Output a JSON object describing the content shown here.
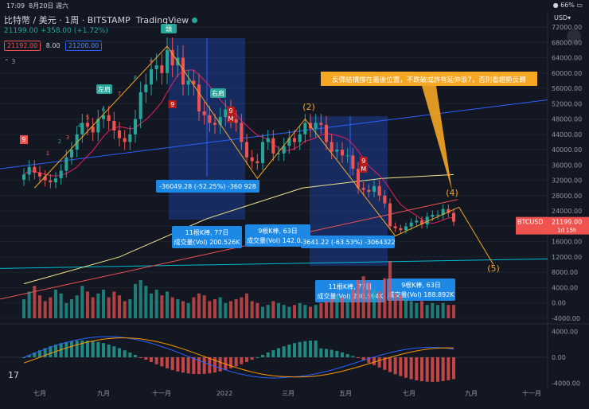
{
  "status_bar": {
    "time": "17:09",
    "date": "8月20日 週六",
    "battery": "66%"
  },
  "header": {
    "symbol": "比特幣 / 美元",
    "interval": "1周",
    "exchange": "BITSTAMP",
    "platform": "TradingView",
    "last_price": "21199.00",
    "change": "+358.00 (+1.72%)",
    "bid": "21192.00",
    "spread": "8.00",
    "ask": "21200.00",
    "indicator_count": "3",
    "currency": "USD"
  },
  "colors": {
    "bg": "#131722",
    "up": "#26a69a",
    "down": "#ef5350",
    "box": "#2962ff",
    "annotation": "#f5a623",
    "callout_bg": "#1e88e5"
  },
  "chart_data": {
    "type": "candlestick",
    "price_axis": {
      "ticks": [
        "72000.00",
        "68000.00",
        "64000.00",
        "60000.00",
        "56000.00",
        "52000.00",
        "48000.00",
        "44000.00",
        "40000.00",
        "36000.00",
        "32000.00",
        "28000.00",
        "24000.00",
        "20000.00",
        "16000.00",
        "12000.00",
        "8000.00",
        "4000.00",
        "0.00",
        "-4000.00"
      ]
    },
    "macd_axis": {
      "ticks": [
        "4000.00",
        "0.00",
        "-4000.00"
      ]
    },
    "time_axis": {
      "ticks": [
        "七月",
        "九月",
        "十一月",
        "2022",
        "三月",
        "五月",
        "七月",
        "九月",
        "十一月"
      ]
    },
    "price_label": {
      "symbol": "BTCUSD",
      "value": "21199.00",
      "countdown": "1d 15h"
    },
    "close_series": [
      33500,
      35500,
      34000,
      33000,
      32000,
      31500,
      32500,
      34500,
      38000,
      40000,
      44000,
      47000,
      46000,
      44500,
      48000,
      49000,
      47500,
      45000,
      43000,
      42000,
      44000,
      48000,
      55000,
      57000,
      61000,
      62000,
      60000,
      66000,
      62000,
      64000,
      57000,
      58000,
      57000,
      50000,
      49000,
      47000,
      46500,
      48500,
      50500,
      48000,
      47000,
      42000,
      38000,
      37000,
      36500,
      42000,
      43000,
      39000,
      39000,
      41000,
      43000,
      42000,
      44000,
      47000,
      45500,
      47000,
      46500,
      42000,
      39500,
      40000,
      38500,
      38500,
      35000,
      30000,
      29500,
      29000,
      30500,
      28000,
      26000,
      20000,
      19500,
      19000,
      20000,
      21000,
      21500,
      20500,
      22500,
      23000,
      23000,
      24500,
      23500,
      21199
    ],
    "bull_markers": [
      {
        "label": "9",
        "index": 0
      }
    ],
    "bear_markers": [
      {
        "label": "9",
        "index": 28
      },
      {
        "label": "9",
        "index": 39
      },
      {
        "label": "M",
        "index": 39
      },
      {
        "label": "9",
        "index": 64
      },
      {
        "label": "M",
        "index": 64
      }
    ],
    "count_labels": [
      "1",
      "2",
      "3",
      "4",
      "5",
      "6",
      "7",
      "8",
      "9"
    ],
    "wave_labels": [
      {
        "text": "(2)"
      },
      {
        "text": "(4)"
      },
      {
        "text": "(5)"
      }
    ],
    "pattern_labels": [
      {
        "text": "左肩"
      },
      {
        "text": "頭"
      },
      {
        "text": "右肩"
      }
    ],
    "measures": [
      {
        "change": "-36049.28 (-52.25%) -360 928",
        "bars": "11根K棒, 77日",
        "volume": "成交量(Vol) 200.526K"
      },
      {
        "bars": "9根K棒, 63日",
        "volume": "成交量(Vol) 142.05K"
      },
      {
        "change": "-3641.22 (-63.53%) -3064322",
        "bars": "11根K棒, 77日",
        "volume": "成交量(Vol) 230.594K"
      },
      {
        "bars": "9根K棒, 63日",
        "volume": "成交量(Vol) 188.892K"
      }
    ],
    "note": "反彈結構撐在最後位置，不跌破或許有延伸浪7，否則看趨勢反轉"
  }
}
